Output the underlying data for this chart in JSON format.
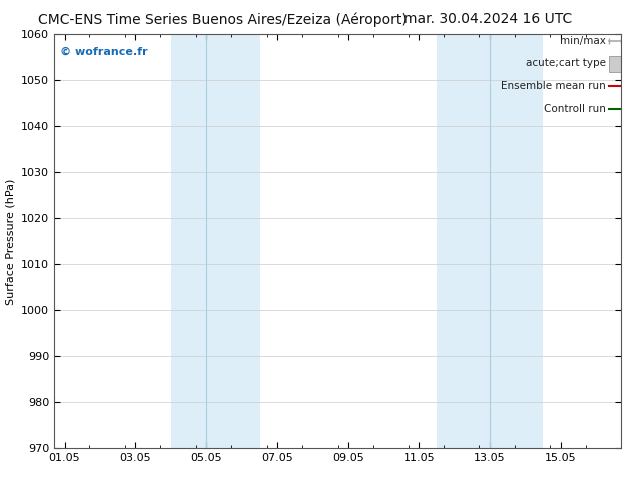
{
  "title": "CMC-ENS Time Series Buenos Aires/Ezeiza (Aéroport)",
  "date_label": "mar. 30.04.2024 16 UTC",
  "watermark": "© wofrance.fr",
  "ylabel": "Surface Pressure (hPa)",
  "ylim": [
    970,
    1060
  ],
  "yticks": [
    970,
    980,
    990,
    1000,
    1010,
    1020,
    1030,
    1040,
    1050,
    1060
  ],
  "xtick_labels": [
    "01.05",
    "03.05",
    "05.05",
    "07.05",
    "09.05",
    "11.05",
    "13.05",
    "15.05"
  ],
  "xtick_positions": [
    0,
    2,
    4,
    6,
    8,
    10,
    12,
    14
  ],
  "xmin": -0.3,
  "xmax": 15.3,
  "shaded_bands": [
    {
      "xmin": 3.0,
      "xmax": 4.0,
      "color": "#ddeef8"
    },
    {
      "xmin": 4.0,
      "xmax": 5.5,
      "color": "#ddeef8"
    },
    {
      "xmin": 10.5,
      "xmax": 12.0,
      "color": "#ddeef8"
    },
    {
      "xmin": 12.0,
      "xmax": 13.5,
      "color": "#ddeef8"
    }
  ],
  "band_separators": [
    4.0,
    12.0
  ],
  "bg_color": "#ffffff",
  "plot_bg_color": "#ffffff",
  "grid_color": "#cccccc",
  "spine_color": "#555555",
  "watermark_color": "#1a6bb5",
  "legend_items": [
    {
      "label": "min/max",
      "color": "#aaaaaa",
      "lw": 1.2,
      "style": "minmax"
    },
    {
      "label": "acute;cart type",
      "color": "#cccccc",
      "lw": 8,
      "style": "rect"
    },
    {
      "label": "Ensemble mean run",
      "color": "#cc0000",
      "lw": 1.5,
      "style": "line"
    },
    {
      "label": "Controll run",
      "color": "#006600",
      "lw": 1.5,
      "style": "line"
    }
  ],
  "title_fontsize": 10,
  "axis_fontsize": 8,
  "tick_fontsize": 8,
  "legend_fontsize": 7.5
}
